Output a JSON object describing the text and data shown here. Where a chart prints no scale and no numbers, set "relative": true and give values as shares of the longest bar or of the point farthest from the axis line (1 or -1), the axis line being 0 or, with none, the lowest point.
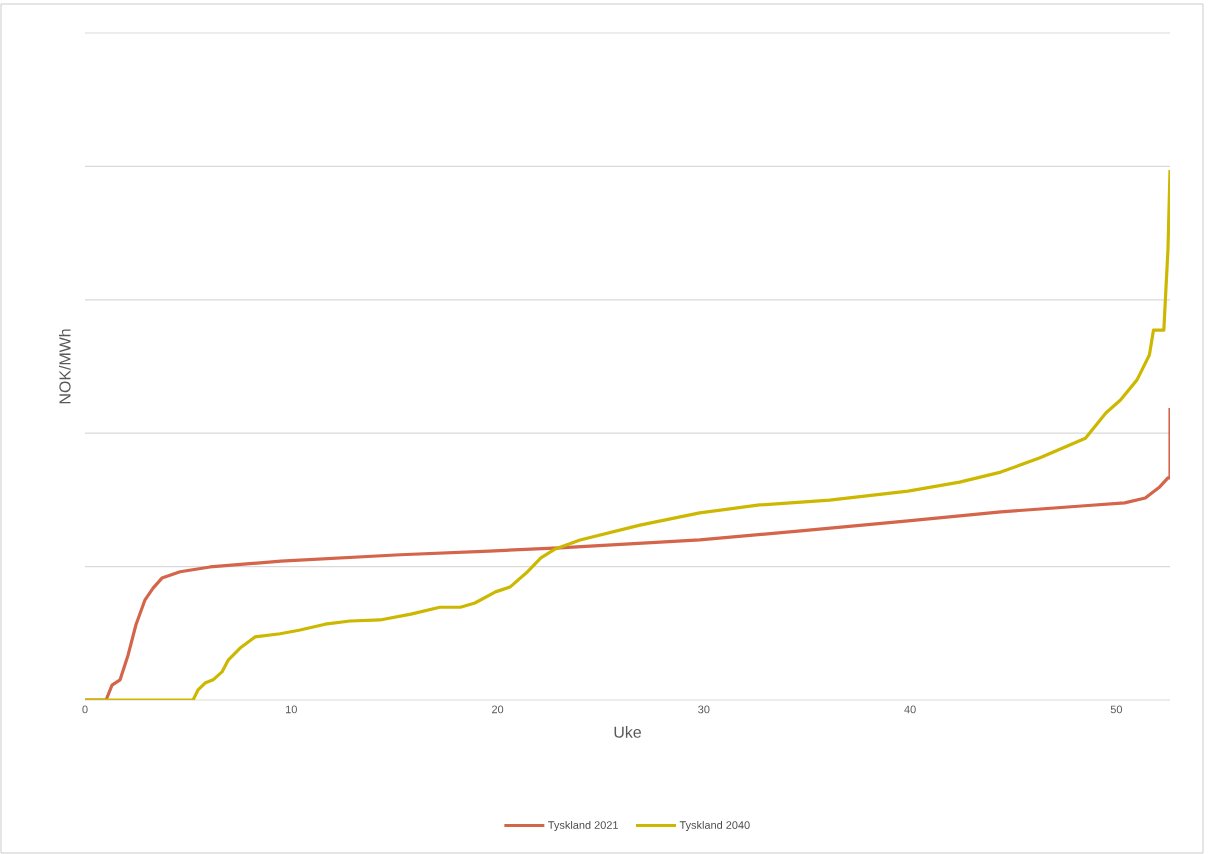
{
  "chart_data": {
    "type": "line",
    "xlabel": "Uke",
    "ylabel": "NOK/MWh",
    "relative": true,
    "xlim": [
      0,
      52.6
    ],
    "xticks": [
      0,
      10,
      20,
      30,
      40,
      50
    ],
    "grid": "y",
    "legend": "bottom",
    "tick_labels": "x",
    "marker": "none",
    "line_style": "solid",
    "series": [
      {
        "name": "Tyskland 2021",
        "color": "#d4654a",
        "x": [
          0,
          1.02,
          1.31,
          1.7,
          2.09,
          2.47,
          2.91,
          3.3,
          3.73,
          4.61,
          6.06,
          9.5,
          15.28,
          19.6,
          23.0,
          29.8,
          34.7,
          39.9,
          44.4,
          48.3,
          50.4,
          51.4,
          52.1,
          52.5,
          52.6,
          52.6
        ],
        "values": [
          0,
          0,
          0.028,
          0.038,
          0.085,
          0.142,
          0.189,
          0.211,
          0.23,
          0.242,
          0.251,
          0.262,
          0.274,
          0.281,
          0.287,
          0.302,
          0.319,
          0.338,
          0.355,
          0.366,
          0.372,
          0.381,
          0.402,
          0.419,
          0.419,
          0.551
        ]
      },
      {
        "name": "Tyskland 2040",
        "color": "#ccb800",
        "x": [
          0,
          4.85,
          5.24,
          5.48,
          5.82,
          6.21,
          6.64,
          6.94,
          7.52,
          8.24,
          9.46,
          10.43,
          11.64,
          12.85,
          14.3,
          15.8,
          17.2,
          18.2,
          18.9,
          19.9,
          20.6,
          21.4,
          22.1,
          22.8,
          24.0,
          26.9,
          29.8,
          32.7,
          36.1,
          39.9,
          42.4,
          44.4,
          46.3,
          48.5,
          49.5,
          50.2,
          51.0,
          51.6,
          51.8,
          52.3,
          52.4,
          52.5,
          52.6
        ],
        "values": [
          0,
          0,
          0,
          0.019,
          0.032,
          0.038,
          0.053,
          0.075,
          0.098,
          0.119,
          0.125,
          0.132,
          0.143,
          0.149,
          0.151,
          0.162,
          0.175,
          0.175,
          0.183,
          0.204,
          0.213,
          0.24,
          0.268,
          0.285,
          0.302,
          0.33,
          0.353,
          0.368,
          0.377,
          0.394,
          0.411,
          0.43,
          0.457,
          0.494,
          0.542,
          0.566,
          0.604,
          0.651,
          0.698,
          0.698,
          0.774,
          0.849,
          1
        ]
      }
    ]
  }
}
